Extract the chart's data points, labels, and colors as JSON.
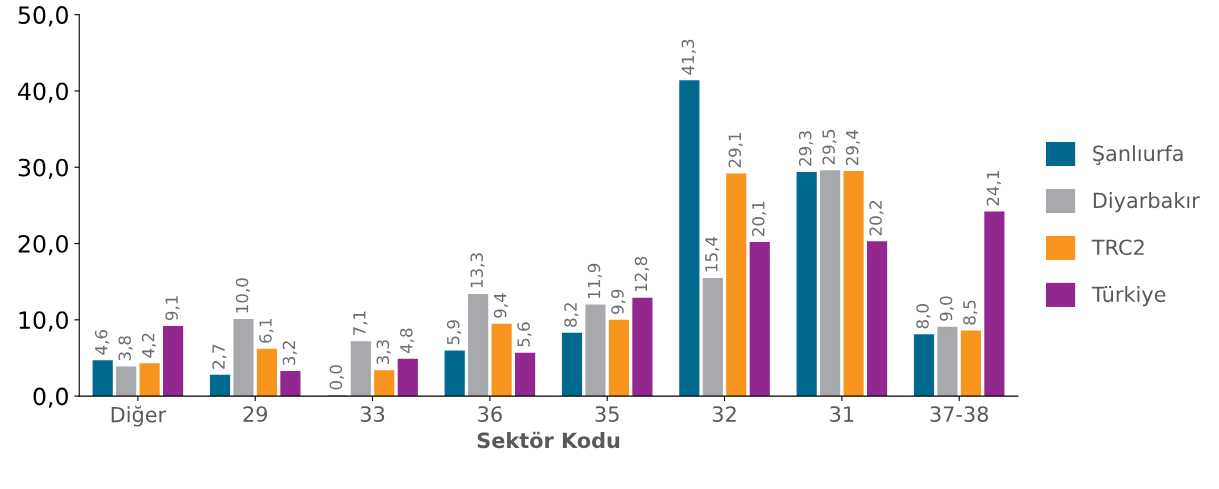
{
  "chart_data": {
    "type": "bar",
    "xlabel": "Sektör Kodu",
    "categories": [
      "Diğer",
      "29",
      "33",
      "36",
      "35",
      "32",
      "31",
      "37-38"
    ],
    "series": [
      {
        "name": "Şanlıurfa",
        "color": "#006a8e",
        "values": [
          4.6,
          2.7,
          0.0,
          5.9,
          8.2,
          41.3,
          29.3,
          8.0
        ],
        "value_labels": [
          "4,6",
          "2,7",
          "0,0",
          "5,9",
          "8,2",
          "41,3",
          "29,3",
          "8,0"
        ]
      },
      {
        "name": "Diyarbakır",
        "color": "#a7a9ac",
        "values": [
          3.8,
          10.0,
          7.1,
          13.3,
          11.9,
          15.4,
          29.5,
          9.0
        ],
        "value_labels": [
          "3,8",
          "10,0",
          "7,1",
          "13,3",
          "11,9",
          "15,4",
          "29,5",
          "9,0"
        ]
      },
      {
        "name": "TRC2",
        "color": "#f7941d",
        "values": [
          4.2,
          6.1,
          3.3,
          9.4,
          9.9,
          29.1,
          29.4,
          8.5
        ],
        "value_labels": [
          "4,2",
          "6,1",
          "3,3",
          "9,4",
          "9,9",
          "29,1",
          "29,4",
          "8,5"
        ]
      },
      {
        "name": "Türkiye",
        "color": "#92278f",
        "values": [
          9.1,
          3.2,
          4.8,
          5.6,
          12.8,
          20.1,
          20.2,
          24.1
        ],
        "value_labels": [
          "9,1",
          "3,2",
          "4,8",
          "5,6",
          "12,8",
          "20,1",
          "20,2",
          "24,1"
        ]
      }
    ],
    "ylim": [
      0,
      50
    ],
    "yticks": [
      {
        "value": 0,
        "label": "0,0"
      },
      {
        "value": 10,
        "label": "10,0"
      },
      {
        "value": 20,
        "label": "20,0"
      },
      {
        "value": 30,
        "label": "30,0"
      },
      {
        "value": 40,
        "label": "40,0"
      },
      {
        "value": 50,
        "label": "50,0"
      }
    ],
    "grid": false,
    "legend": "right"
  }
}
